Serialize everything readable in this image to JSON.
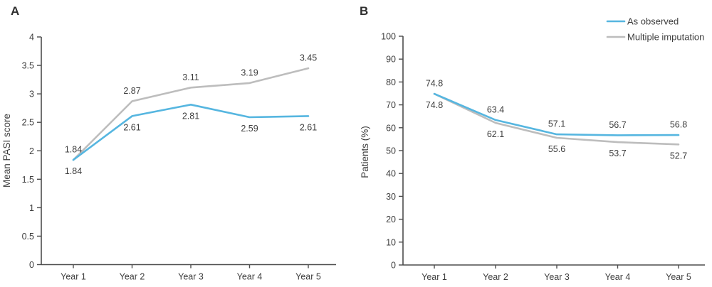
{
  "figure": {
    "background": "#ffffff",
    "text_color": "#3e3e3e",
    "axis_color": "#4d4d4d",
    "accent_blue": "#56b6e0",
    "accent_gray": "#bdbdbd"
  },
  "legend": {
    "position": "top-right",
    "items": [
      {
        "label": "As observed",
        "color": "#56b6e0"
      },
      {
        "label": "Multiple imputation",
        "color": "#bdbdbd"
      }
    ]
  },
  "chart_data": [
    {
      "type": "line",
      "panel_label": "A",
      "title": "",
      "xlabel": "",
      "ylabel": "Mean PASI score",
      "categories": [
        "Year 1",
        "Year 2",
        "Year 3",
        "Year 4",
        "Year 5"
      ],
      "ylim": [
        0,
        4
      ],
      "ytick_step": 0.5,
      "ytick_labels": [
        "0",
        "0.5",
        "1",
        "1.5",
        "2",
        "2.5",
        "3",
        "3.5",
        "4"
      ],
      "grid": false,
      "show_legend": false,
      "series": [
        {
          "name": "As observed",
          "color": "#56b6e0",
          "values": [
            1.84,
            2.61,
            2.81,
            2.59,
            2.61
          ],
          "labels": [
            "1.84",
            "2.61",
            "2.81",
            "2.59",
            "2.61"
          ],
          "label_position": "below"
        },
        {
          "name": "Multiple imputation",
          "color": "#bdbdbd",
          "values": [
            1.84,
            2.87,
            3.11,
            3.19,
            3.45
          ],
          "labels": [
            "1.84",
            "2.87",
            "3.11",
            "3.19",
            "3.45"
          ],
          "label_position": "above"
        }
      ]
    },
    {
      "type": "line",
      "panel_label": "B",
      "title": "",
      "xlabel": "",
      "ylabel": "Patients (%)",
      "categories": [
        "Year 1",
        "Year 2",
        "Year 3",
        "Year 4",
        "Year 5"
      ],
      "ylim": [
        0,
        100
      ],
      "ytick_step": 10,
      "ytick_labels": [
        "0",
        "10",
        "20",
        "30",
        "40",
        "50",
        "60",
        "70",
        "80",
        "90",
        "100"
      ],
      "grid": false,
      "show_legend": true,
      "legend_position": "top-right",
      "series": [
        {
          "name": "As observed",
          "color": "#56b6e0",
          "values": [
            74.8,
            63.4,
            57.1,
            56.7,
            56.8
          ],
          "labels": [
            "74.8",
            "63.4",
            "57.1",
            "56.7",
            "56.8"
          ],
          "label_position": "above"
        },
        {
          "name": "Multiple imputation",
          "color": "#bdbdbd",
          "values": [
            74.8,
            62.1,
            55.6,
            53.7,
            52.7
          ],
          "labels": [
            "74.8",
            "62.1",
            "55.6",
            "53.7",
            "52.7"
          ],
          "label_position": "below"
        }
      ]
    }
  ]
}
